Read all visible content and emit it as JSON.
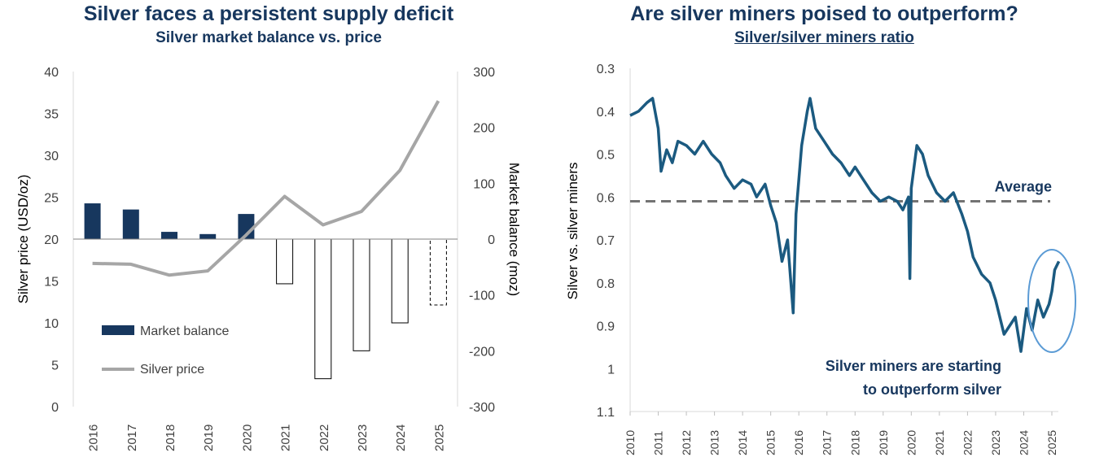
{
  "left": {
    "title": "Silver faces a persistent supply deficit",
    "subtitle": "Silver market balance vs. price",
    "colors": {
      "balance_fill": "#17375e",
      "price_line": "#a6a6a6",
      "deficit_fill": "#ffffff",
      "deficit_stroke": "#000000"
    },
    "chart_data": {
      "type": "bar+line",
      "categories": [
        "2016",
        "2017",
        "2018",
        "2019",
        "2020",
        "2021",
        "2022",
        "2023",
        "2024",
        "2025"
      ],
      "series": [
        {
          "name": "Market balance",
          "axis": "right",
          "type": "bar",
          "values": [
            64,
            53,
            13,
            9,
            45,
            -80,
            -250,
            -200,
            -150,
            -118
          ],
          "estimate": [
            false,
            false,
            false,
            false,
            false,
            false,
            false,
            false,
            false,
            true
          ]
        },
        {
          "name": "Silver price",
          "axis": "left",
          "type": "line",
          "values": [
            17.1,
            17.0,
            15.7,
            16.2,
            20.5,
            25.1,
            21.7,
            23.3,
            28.2,
            36.5
          ]
        }
      ],
      "ylabel_left": "Silver price (USD/oz)",
      "ylabel_right": "Market balance (moz)",
      "yticks_left": [
        "40",
        "35",
        "30",
        "25",
        "20",
        "15",
        "10",
        "5",
        "0"
      ],
      "ylim_left": [
        0,
        40
      ],
      "yticks_right": [
        "300",
        "200",
        "100",
        "0",
        "-100",
        "-200",
        "-300"
      ],
      "ylim_right": [
        -300,
        300
      ],
      "legend": [
        {
          "label": "Market balance",
          "kind": "bar"
        },
        {
          "label": "Silver price",
          "kind": "line"
        }
      ],
      "legend_position": "lower-left",
      "grid": false
    }
  },
  "right": {
    "title": "Are silver miners poised to outperform?",
    "subtitle": "Silver/silver miners ratio",
    "colors": {
      "line": "#1b5a80",
      "average": "#737373",
      "annotation": "#17375e",
      "ellipse": "#5b9bd5"
    },
    "chart_data": {
      "type": "line",
      "series_name": "Silver/silver miners ratio",
      "ylabel": "Silver vs. silver miners",
      "y_inverted": true,
      "ylim": [
        0.3,
        1.1
      ],
      "yticks": [
        "0.3",
        "0.4",
        "0.5",
        "0.6",
        "0.7",
        "0.8",
        "0.9",
        "1",
        "1.1"
      ],
      "xlim": [
        2010,
        2025.4
      ],
      "xticks": [
        "2010",
        "2011",
        "2012",
        "2013",
        "2014",
        "2015",
        "2016",
        "2017",
        "2018",
        "2019",
        "2020",
        "2021",
        "2022",
        "2023",
        "2024",
        "2025"
      ],
      "average": 0.61,
      "average_label": "Average",
      "annotation_line1": "Silver miners are starting",
      "annotation_line2": "to outperform silver",
      "points": [
        [
          2010.0,
          0.41
        ],
        [
          2010.3,
          0.4
        ],
        [
          2010.6,
          0.38
        ],
        [
          2010.8,
          0.37
        ],
        [
          2011.0,
          0.44
        ],
        [
          2011.1,
          0.54
        ],
        [
          2011.3,
          0.49
        ],
        [
          2011.5,
          0.52
        ],
        [
          2011.7,
          0.47
        ],
        [
          2012.0,
          0.48
        ],
        [
          2012.3,
          0.5
        ],
        [
          2012.6,
          0.47
        ],
        [
          2012.9,
          0.5
        ],
        [
          2013.2,
          0.52
        ],
        [
          2013.4,
          0.55
        ],
        [
          2013.7,
          0.58
        ],
        [
          2014.0,
          0.56
        ],
        [
          2014.3,
          0.57
        ],
        [
          2014.5,
          0.6
        ],
        [
          2014.8,
          0.57
        ],
        [
          2015.0,
          0.62
        ],
        [
          2015.2,
          0.66
        ],
        [
          2015.4,
          0.75
        ],
        [
          2015.6,
          0.7
        ],
        [
          2015.8,
          0.87
        ],
        [
          2015.9,
          0.64
        ],
        [
          2016.1,
          0.48
        ],
        [
          2016.3,
          0.4
        ],
        [
          2016.4,
          0.37
        ],
        [
          2016.6,
          0.44
        ],
        [
          2016.9,
          0.47
        ],
        [
          2017.2,
          0.5
        ],
        [
          2017.5,
          0.52
        ],
        [
          2017.8,
          0.55
        ],
        [
          2018.0,
          0.53
        ],
        [
          2018.3,
          0.56
        ],
        [
          2018.6,
          0.59
        ],
        [
          2018.9,
          0.61
        ],
        [
          2019.2,
          0.6
        ],
        [
          2019.5,
          0.61
        ],
        [
          2019.7,
          0.63
        ],
        [
          2019.9,
          0.6
        ],
        [
          2019.95,
          0.79
        ],
        [
          2020.0,
          0.58
        ],
        [
          2020.2,
          0.48
        ],
        [
          2020.4,
          0.5
        ],
        [
          2020.6,
          0.55
        ],
        [
          2020.9,
          0.59
        ],
        [
          2021.2,
          0.61
        ],
        [
          2021.5,
          0.59
        ],
        [
          2021.8,
          0.64
        ],
        [
          2022.0,
          0.68
        ],
        [
          2022.2,
          0.74
        ],
        [
          2022.5,
          0.78
        ],
        [
          2022.8,
          0.8
        ],
        [
          2023.0,
          0.84
        ],
        [
          2023.3,
          0.92
        ],
        [
          2023.5,
          0.9
        ],
        [
          2023.7,
          0.88
        ],
        [
          2023.9,
          0.96
        ],
        [
          2024.1,
          0.86
        ],
        [
          2024.3,
          0.91
        ],
        [
          2024.5,
          0.84
        ],
        [
          2024.7,
          0.88
        ],
        [
          2024.9,
          0.85
        ],
        [
          2025.0,
          0.82
        ],
        [
          2025.1,
          0.77
        ],
        [
          2025.25,
          0.75
        ]
      ]
    }
  }
}
